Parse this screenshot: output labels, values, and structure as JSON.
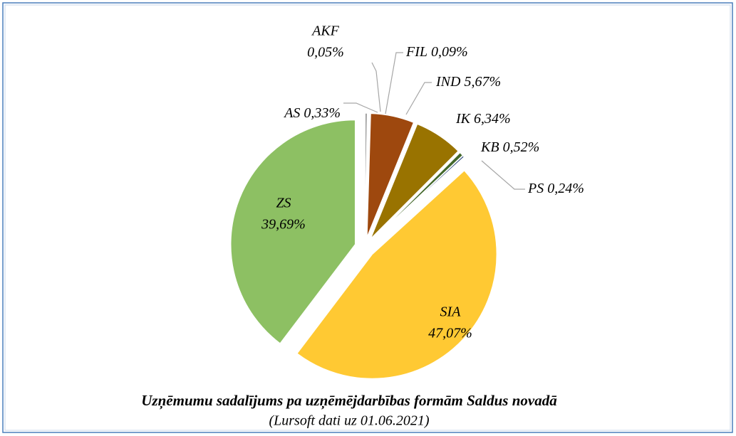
{
  "chart_data": {
    "type": "pie",
    "title": "Uzņēmumu sadalījums pa uzņēmējdarbības  formām Saldus novadā",
    "subtitle": "(Lursoft dati uz 01.06.2021)",
    "categories": [
      "AS",
      "AKF",
      "FIL",
      "IND",
      "IK",
      "KB",
      "PS",
      "SIA",
      "ZS"
    ],
    "values": [
      0.33,
      0.05,
      0.09,
      5.67,
      6.34,
      0.52,
      0.24,
      47.07,
      39.69
    ],
    "value_labels": [
      "0,33%",
      "0,05%",
      "0,09%",
      "5,67%",
      "6,34%",
      "0,52%",
      "0,24%",
      "47,07%",
      "39,69%"
    ],
    "colors": [
      "#a5a5a5",
      "#4472c4",
      "#5b9bd5",
      "#9e480e",
      "#997300",
      "#43682b",
      "#264478",
      "#ffc933",
      "#8dc063"
    ]
  }
}
